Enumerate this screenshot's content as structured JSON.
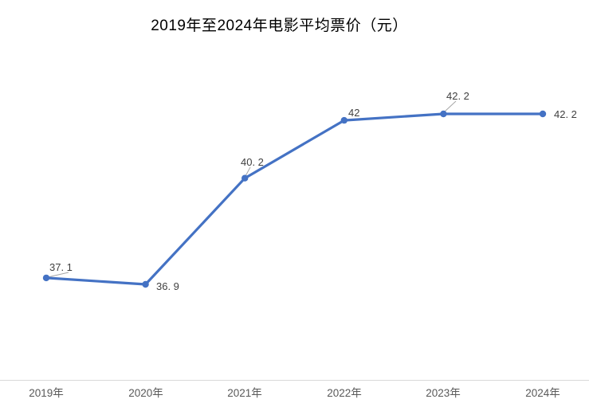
{
  "title": "2019年至2024年电影平均票价（元）",
  "chart_data": {
    "type": "line",
    "title": "2019年至2024年电影平均票价（元）",
    "categories": [
      "2019年",
      "2020年",
      "2021年",
      "2022年",
      "2023年",
      "2024年"
    ],
    "values": [
      37.1,
      36.9,
      40.2,
      42,
      42.2,
      42.2
    ],
    "data_labels": [
      "37. 1",
      "36. 9",
      "40. 2",
      "42",
      "42. 2",
      "42. 2"
    ],
    "series_name": "电影平均票价",
    "xlabel": "",
    "ylabel": "",
    "grid": false,
    "legend": false,
    "y_axis_visible": false,
    "x_axis_visible": true,
    "marker": "circle",
    "line_color": "#4472C4",
    "marker_color": "#4472C4",
    "leader_line_color": "#a6a6a6",
    "axis_line_color": "#d9d9d9",
    "data_label_color": "#404040",
    "tick_label_color": "#595959"
  }
}
